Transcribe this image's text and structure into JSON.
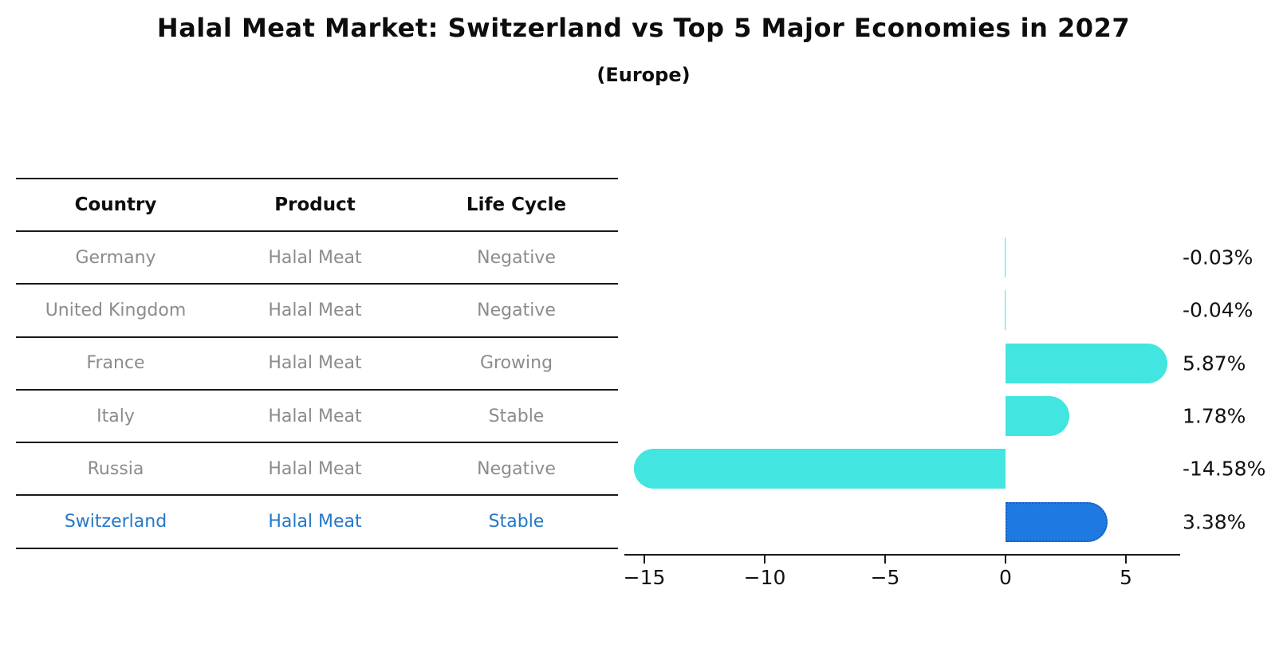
{
  "title": "Halal Meat Market: Switzerland vs Top 5 Major Economies in 2027",
  "subtitle": "(Europe)",
  "table": {
    "headers": [
      "Country",
      "Product",
      "Life Cycle"
    ],
    "rows": [
      {
        "country": "Germany",
        "product": "Halal Meat",
        "life_cycle": "Negative",
        "highlight": false
      },
      {
        "country": "United Kingdom",
        "product": "Halal Meat",
        "life_cycle": "Negative",
        "highlight": false
      },
      {
        "country": "France",
        "product": "Halal Meat",
        "life_cycle": "Growing",
        "highlight": false
      },
      {
        "country": "Italy",
        "product": "Halal Meat",
        "life_cycle": "Stable",
        "highlight": false
      },
      {
        "country": "Russia",
        "product": "Halal Meat",
        "life_cycle": "Negative",
        "highlight": false
      },
      {
        "country": "Switzerland",
        "product": "Halal Meat",
        "life_cycle": "Stable",
        "highlight": true
      }
    ]
  },
  "chart_data": {
    "type": "bar",
    "orientation": "horizontal",
    "categories": [
      "Germany",
      "United Kingdom",
      "France",
      "Italy",
      "Russia",
      "Switzerland"
    ],
    "values": [
      -0.03,
      -0.04,
      5.87,
      1.78,
      -14.58,
      3.38
    ],
    "value_labels": [
      "-0.03%",
      "-0.04%",
      "5.87%",
      "1.78%",
      "-14.58%",
      "3.38%"
    ],
    "x_ticks": [
      -15,
      -10,
      -5,
      0,
      5
    ],
    "x_tick_labels": [
      "−15",
      "−10",
      "−5",
      "0",
      "5"
    ],
    "xlim": [
      -16.5,
      7.3
    ],
    "grid": false,
    "legend": false,
    "highlight_index": 5,
    "colors": {
      "bar": "#42E5DF",
      "highlight_bar": "#1E7AE0",
      "highlight_border": "#155FC0",
      "axis": "#1a1a1a",
      "value_text": "#111111",
      "table_text": "#8c8c8c",
      "table_highlight_text": "#2478CB"
    }
  }
}
